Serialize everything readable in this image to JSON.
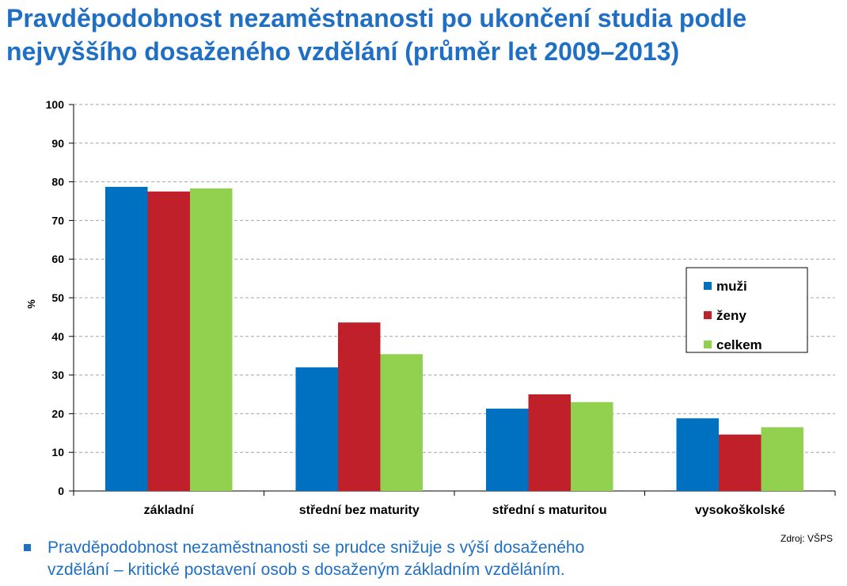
{
  "title": {
    "line1": "Pravděpodobnost nezaměstnanosti po ukončení studia podle",
    "line2": "nejvyššího dosaženého vzdělání (průměr let 2009–2013)"
  },
  "source": "Zdroj: VŠPS",
  "bullet": {
    "line1": "Pravděpodobnost nezaměstnanosti se prudce snižuje s výší dosaženého",
    "line2": "vzdělání – kritické postavení osob s dosaženým základním vzděláním."
  },
  "colors": {
    "title": "#1f6fc5",
    "muzi": "#0070c0",
    "zeny": "#c0202a",
    "celkem": "#92d050",
    "gridline": "#a6a6a6"
  },
  "chart_data": {
    "type": "bar",
    "title": "",
    "xlabel": "",
    "ylabel": "%",
    "ylim": [
      0,
      100
    ],
    "yticks": [
      0,
      10,
      20,
      30,
      40,
      50,
      60,
      70,
      80,
      90,
      100
    ],
    "grid": true,
    "legend_position": "right",
    "categories": [
      "základní",
      "střední bez maturity",
      "střední s maturitou",
      "vysokoškolské"
    ],
    "series": [
      {
        "name": "muži",
        "color": "#0070c0",
        "values": [
          78.7,
          32.0,
          21.3,
          18.8
        ]
      },
      {
        "name": "ženy",
        "color": "#c0202a",
        "values": [
          77.5,
          43.6,
          25.0,
          14.6
        ]
      },
      {
        "name": "celkem",
        "color": "#92d050",
        "values": [
          78.3,
          35.4,
          23.0,
          16.5
        ]
      }
    ]
  }
}
